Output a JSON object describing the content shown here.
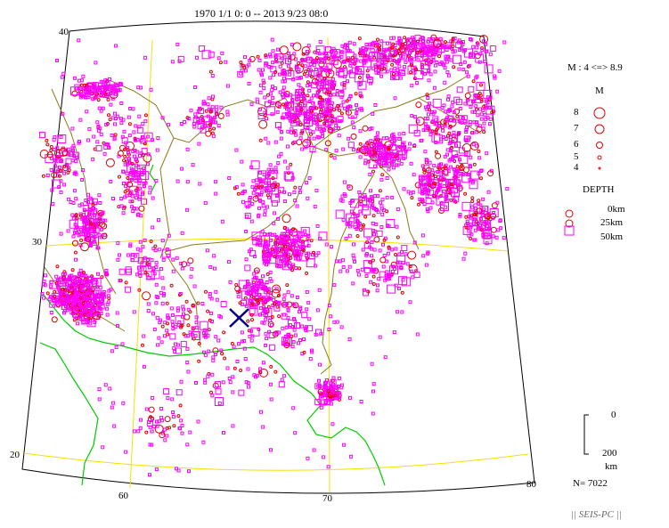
{
  "title": "1970 1/1 0: 0 -- 2013 9/23 08:0",
  "grid_labels": {
    "lat_40": "40",
    "lat_30": "30",
    "lat_20": "20",
    "lon_60": "60",
    "lon_70": "70",
    "lon_80": "80"
  },
  "legend": {
    "magnitude_range": "M : 4 <=> 8.9",
    "magnitude_heading": "M",
    "magnitudes": [
      "8",
      "7",
      "6",
      "5",
      "4"
    ],
    "depth_heading": "DEPTH",
    "depths": [
      "0km",
      "25km",
      "50km"
    ],
    "scale_top": "0",
    "scale_bottom": "200",
    "scale_unit": "km"
  },
  "event_count": "N= 7022",
  "credit": "|| SEIS-PC ||",
  "colors": {
    "quake_marker": "#ff00ff",
    "shallow_marker": "#dd0000",
    "border": "#8b7a1e",
    "coastline": "#00cc00",
    "graticule": "#f5e000",
    "selected_epicenter": "#00008b"
  },
  "icons": {
    "selected_epicenter": "x-mark-icon"
  }
}
